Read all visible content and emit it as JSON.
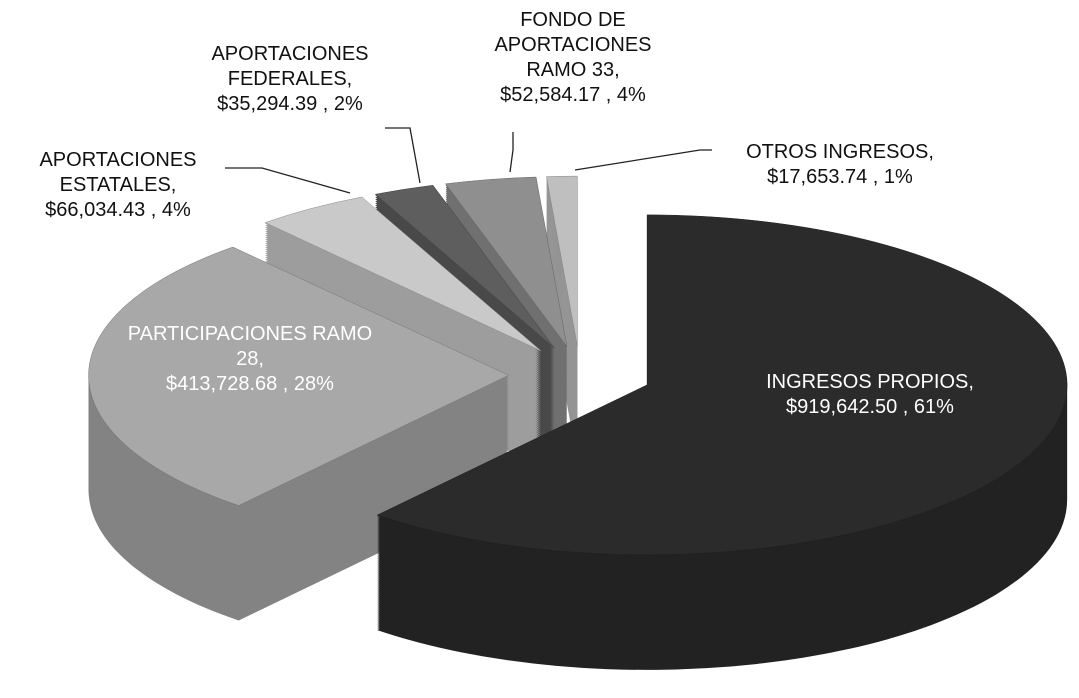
{
  "chart_data": {
    "type": "pie3d",
    "categories": [
      "INGRESOS PROPIOS,",
      "PARTICIPACIONES RAMO 28,",
      "APORTACIONES ESTATALES,",
      "APORTACIONES FEDERALES,",
      "FONDO DE APORTACIONES RAMO 33,",
      "OTROS INGRESOS,"
    ],
    "values": [
      919642.5,
      413728.68,
      66034.43,
      35294.39,
      52584.17,
      17653.74
    ],
    "value_labels": [
      "$919,642.50 , 61%",
      "$413,728.68 , 28%",
      "$66,034.43 , 4%",
      "$35,294.39 , 2%",
      "$52,584.17 , 4%",
      "$17,653.74 , 1%"
    ],
    "colors": [
      "#2b2b2b",
      "#a8a8a8",
      "#c9c9c9",
      "#5e5e5e",
      "#8f8f8f",
      "#bfbfbf"
    ]
  }
}
